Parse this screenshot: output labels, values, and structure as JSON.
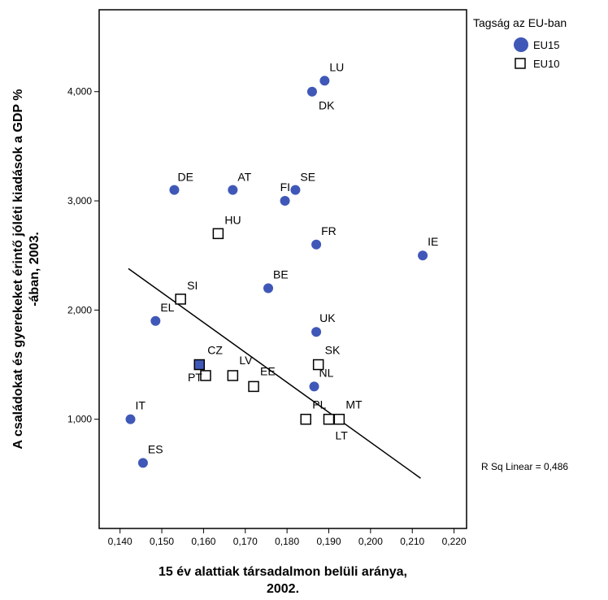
{
  "chart_data": {
    "type": "scatter",
    "xlabel_lines": [
      "15 év alattiak társadalmon belüli aránya,",
      "2002."
    ],
    "ylabel_lines": [
      "A családokat és gyerekeket érintő jóléti kiadások a GDP %",
      "-ában, 2003."
    ],
    "xlim": [
      0.135,
      0.223
    ],
    "ylim": [
      0,
      4750
    ],
    "x_ticks": [
      0.14,
      0.15,
      0.16,
      0.17,
      0.18,
      0.19,
      0.2,
      0.21,
      0.22
    ],
    "x_tick_labels": [
      "0,140",
      "0,150",
      "0,160",
      "0,170",
      "0,180",
      "0,190",
      "0,200",
      "0,210",
      "0,220"
    ],
    "y_ticks": [
      1000,
      2000,
      3000,
      4000
    ],
    "y_tick_labels": [
      "1,000",
      "2,000",
      "3,000",
      "4,000"
    ],
    "legend": {
      "title": "Tagság az EU-ban",
      "entries": [
        {
          "name": "EU15",
          "marker": "circle",
          "color": "#3f58b8"
        },
        {
          "name": "EU10",
          "marker": "square",
          "color": "#ffffff"
        }
      ]
    },
    "fit_line": {
      "x": [
        0.142,
        0.212
      ],
      "y": [
        2380,
        460
      ]
    },
    "r_squared_text": "R Sq Linear = 0,486",
    "series": [
      {
        "name": "EU15",
        "marker": "circle",
        "color": "#3f58b8",
        "points": [
          {
            "label": "LU",
            "x": 0.189,
            "y": 4100,
            "dx": 6,
            "dy": -12
          },
          {
            "label": "DK",
            "x": 0.186,
            "y": 4000,
            "dx": 8,
            "dy": 22
          },
          {
            "label": "DE",
            "x": 0.153,
            "y": 3100,
            "dx": 4,
            "dy": -11
          },
          {
            "label": "AT",
            "x": 0.167,
            "y": 3100,
            "dx": 6,
            "dy": -11
          },
          {
            "label": "SE",
            "x": 0.182,
            "y": 3100,
            "dx": 6,
            "dy": -11
          },
          {
            "label": "FI",
            "x": 0.1795,
            "y": 3000,
            "dx": -6,
            "dy": -12
          },
          {
            "label": "FR",
            "x": 0.187,
            "y": 2600,
            "dx": 6,
            "dy": -12
          },
          {
            "label": "IE",
            "x": 0.2125,
            "y": 2500,
            "dx": 6,
            "dy": -12
          },
          {
            "label": "BE",
            "x": 0.1755,
            "y": 2200,
            "dx": 6,
            "dy": -12
          },
          {
            "label": "EL",
            "x": 0.1485,
            "y": 1900,
            "dx": 6,
            "dy": -12
          },
          {
            "label": "UK",
            "x": 0.187,
            "y": 1800,
            "dx": 4,
            "dy": -12
          },
          {
            "label": "NL",
            "x": 0.1865,
            "y": 1300,
            "dx": 6,
            "dy": -12
          },
          {
            "label": "IT",
            "x": 0.1425,
            "y": 1000,
            "dx": 6,
            "dy": -12
          },
          {
            "label": "ES",
            "x": 0.1455,
            "y": 600,
            "dx": 6,
            "dy": -12
          }
        ]
      },
      {
        "name": "EU10",
        "marker": "square",
        "color": "#ffffff",
        "points": [
          {
            "label": "HU",
            "x": 0.1635,
            "y": 2700,
            "dx": 8,
            "dy": -12
          },
          {
            "label": "SI",
            "x": 0.1545,
            "y": 2100,
            "dx": 8,
            "dy": -12
          },
          {
            "label": "CZ",
            "x": 0.159,
            "y": 1500,
            "dx": 10,
            "dy": -13,
            "fill": "#3f58b8"
          },
          {
            "label": "LV",
            "x": 0.167,
            "y": 1400,
            "dx": 8,
            "dy": -14
          },
          {
            "label": "PT",
            "x": 0.1605,
            "y": 1400,
            "dx": -22,
            "dy": 7
          },
          {
            "label": "EE",
            "x": 0.172,
            "y": 1300,
            "dx": 8,
            "dy": -14
          },
          {
            "label": "SK",
            "x": 0.1875,
            "y": 1500,
            "dx": 8,
            "dy": -13
          },
          {
            "label": "PL",
            "x": 0.1845,
            "y": 1000,
            "dx": 8,
            "dy": -13
          },
          {
            "label": "MT",
            "x": 0.1925,
            "y": 1000,
            "dx": 8,
            "dy": -13
          },
          {
            "label": "LT",
            "x": 0.19,
            "y": 1000,
            "dx": 8,
            "dy": 25
          }
        ]
      }
    ]
  }
}
